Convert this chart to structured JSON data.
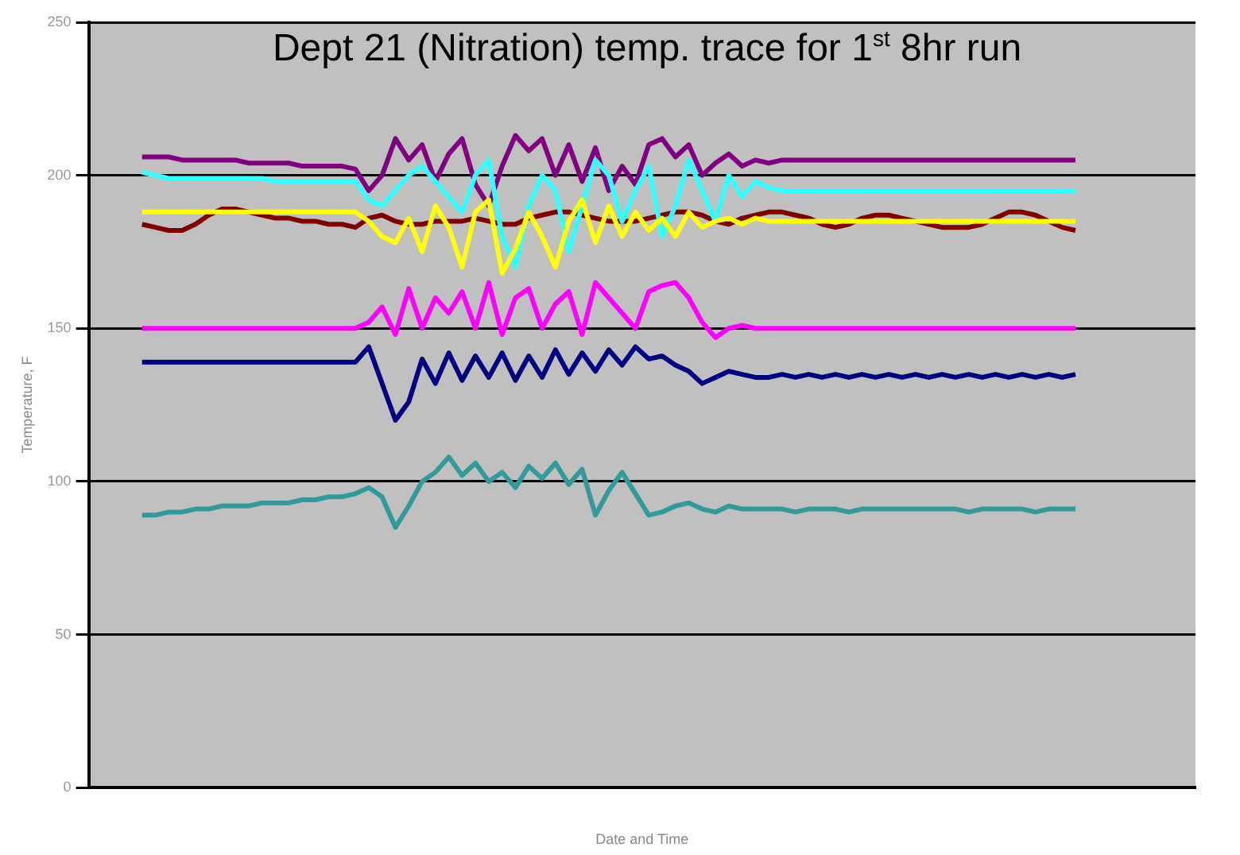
{
  "chart_data": {
    "type": "line",
    "title": "Dept 21 (Nitration) temp. trace for 1$^{st}$ 8hr run",
    "xlabel": "Date and Time",
    "ylabel": "Temperature, F",
    "categories": [
      null,
      null,
      null,
      null,
      null,
      null,
      null,
      null,
      null,
      null,
      null,
      null,
      null,
      null,
      null,
      null,
      null,
      null,
      null,
      null,
      null,
      null,
      null,
      null,
      null,
      null,
      null,
      null,
      null,
      null,
      null,
      null,
      null,
      null,
      null,
      null,
      null,
      null,
      null,
      null,
      null,
      null,
      null,
      null,
      null,
      null,
      null,
      null,
      null,
      null,
      null,
      null,
      null,
      null,
      null,
      null,
      null,
      null,
      null,
      null,
      null,
      null,
      null,
      null,
      null,
      null,
      null,
      null,
      null,
      null,
      null,
      null,
      null,
      null,
      null,
      null,
      null,
      null,
      null,
      null,
      null,
      null,
      null,
      null
    ],
    "ylim": [
      0,
      250
    ],
    "yticks": [
      0,
      50,
      100,
      150,
      200,
      250
    ],
    "grid": "y",
    "marker": "none",
    "line_style": "solid",
    "series": [
      {
        "color": "#ffff00",
        "values": [
          null,
          null,
          null,
          null,
          188,
          188,
          188,
          188,
          188,
          188,
          188,
          188,
          188,
          188,
          188,
          188,
          188,
          188,
          188,
          188,
          188,
          185,
          180,
          178,
          186,
          175,
          190,
          183,
          170,
          188,
          192,
          168,
          176,
          188,
          180,
          170,
          185,
          192,
          178,
          190,
          180,
          188,
          182,
          186,
          180,
          188,
          183,
          185,
          186,
          184,
          186,
          185,
          185,
          185,
          185,
          185,
          185,
          185,
          185,
          185,
          185,
          185,
          185,
          185,
          185,
          185,
          185,
          185,
          185,
          185,
          185,
          185,
          185,
          185,
          185,
          null,
          null,
          null,
          null,
          null,
          null,
          null,
          null,
          null
        ]
      },
      {
        "color": "#33ffff",
        "values": [
          null,
          null,
          null,
          null,
          201,
          200,
          199,
          199,
          199,
          199,
          199,
          199,
          199,
          199,
          198,
          198,
          198,
          198,
          198,
          198,
          198,
          192,
          190,
          195,
          200,
          203,
          198,
          193,
          188,
          200,
          205,
          180,
          170,
          190,
          200,
          195,
          175,
          190,
          205,
          200,
          185,
          195,
          203,
          180,
          190,
          205,
          195,
          185,
          200,
          193,
          198,
          196,
          195,
          195,
          195,
          195,
          195,
          195,
          195,
          195,
          195,
          195,
          195,
          195,
          195,
          195,
          195,
          195,
          195,
          195,
          195,
          195,
          195,
          195,
          195,
          null,
          null,
          null,
          null,
          null,
          null,
          null,
          null,
          null
        ]
      },
      {
        "color": "#800080",
        "values": [
          null,
          null,
          null,
          null,
          206,
          206,
          206,
          205,
          205,
          205,
          205,
          205,
          204,
          204,
          204,
          204,
          203,
          203,
          203,
          203,
          202,
          195,
          200,
          212,
          205,
          210,
          198,
          207,
          212,
          197,
          190,
          203,
          213,
          208,
          212,
          200,
          210,
          198,
          209,
          195,
          203,
          197,
          210,
          212,
          206,
          210,
          200,
          204,
          207,
          203,
          205,
          204,
          205,
          205,
          205,
          205,
          205,
          205,
          205,
          205,
          205,
          205,
          205,
          205,
          205,
          205,
          205,
          205,
          205,
          205,
          205,
          205,
          205,
          205,
          205,
          null,
          null,
          null,
          null,
          null,
          null,
          null,
          null,
          null
        ]
      },
      {
        "color": "#800000",
        "values": [
          null,
          null,
          null,
          null,
          184,
          183,
          182,
          182,
          184,
          187,
          189,
          189,
          188,
          187,
          186,
          186,
          185,
          185,
          184,
          184,
          183,
          186,
          187,
          185,
          184,
          184,
          185,
          185,
          185,
          186,
          185,
          184,
          184,
          186,
          187,
          188,
          188,
          187,
          186,
          185,
          185,
          185,
          186,
          187,
          188,
          188,
          187,
          185,
          184,
          186,
          187,
          188,
          188,
          187,
          186,
          184,
          183,
          184,
          186,
          187,
          187,
          186,
          185,
          184,
          183,
          183,
          183,
          184,
          186,
          188,
          188,
          187,
          185,
          183,
          182,
          null,
          null,
          null,
          null,
          null,
          null,
          null,
          null,
          null
        ]
      },
      {
        "color": "#ff00ff",
        "values": [
          null,
          null,
          null,
          null,
          150,
          150,
          150,
          150,
          150,
          150,
          150,
          150,
          150,
          150,
          150,
          150,
          150,
          150,
          150,
          150,
          150,
          152,
          157,
          148,
          163,
          150,
          160,
          155,
          162,
          150,
          165,
          148,
          160,
          163,
          150,
          158,
          162,
          148,
          165,
          160,
          155,
          150,
          162,
          164,
          165,
          160,
          152,
          147,
          150,
          151,
          150,
          150,
          150,
          150,
          150,
          150,
          150,
          150,
          150,
          150,
          150,
          150,
          150,
          150,
          150,
          150,
          150,
          150,
          150,
          150,
          150,
          150,
          150,
          150,
          150,
          null,
          null,
          null,
          null,
          null,
          null,
          null,
          null,
          null
        ]
      },
      {
        "color": "#000080",
        "values": [
          null,
          null,
          null,
          null,
          139,
          139,
          139,
          139,
          139,
          139,
          139,
          139,
          139,
          139,
          139,
          139,
          139,
          139,
          139,
          139,
          139,
          144,
          132,
          120,
          126,
          140,
          132,
          142,
          133,
          141,
          134,
          142,
          133,
          141,
          134,
          143,
          135,
          142,
          136,
          143,
          138,
          144,
          140,
          141,
          138,
          136,
          132,
          134,
          136,
          135,
          134,
          134,
          135,
          134,
          135,
          134,
          135,
          134,
          135,
          134,
          135,
          134,
          135,
          134,
          135,
          134,
          135,
          134,
          135,
          134,
          135,
          134,
          135,
          134,
          135,
          null,
          null,
          null,
          null,
          null,
          null,
          null,
          null,
          null
        ]
      },
      {
        "color": "#339999",
        "values": [
          null,
          null,
          null,
          null,
          89,
          89,
          90,
          90,
          91,
          91,
          92,
          92,
          92,
          93,
          93,
          93,
          94,
          94,
          95,
          95,
          96,
          98,
          95,
          85,
          92,
          100,
          103,
          108,
          102,
          106,
          100,
          103,
          98,
          105,
          101,
          106,
          99,
          104,
          89,
          97,
          103,
          96,
          89,
          90,
          92,
          93,
          91,
          90,
          92,
          91,
          91,
          91,
          91,
          90,
          91,
          91,
          91,
          90,
          91,
          91,
          91,
          91,
          91,
          91,
          91,
          91,
          90,
          91,
          91,
          91,
          91,
          90,
          91,
          91,
          91,
          null,
          null,
          null,
          null,
          null,
          null,
          null,
          null,
          null
        ]
      }
    ]
  }
}
